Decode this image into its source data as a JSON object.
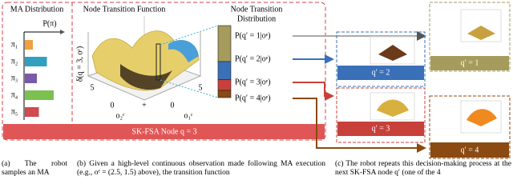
{
  "panel_a": {
    "title": "MA Distribution",
    "axis_label": "P(π)",
    "policies": [
      "π₁",
      "π₂",
      "π₃",
      "π₄",
      "π₅"
    ],
    "probabilities": [
      0.2,
      0.55,
      0.3,
      0.72,
      0.35
    ],
    "colors": [
      "#f0a040",
      "#30a0c0",
      "#7a5aa8",
      "#7cc050",
      "#d04a50"
    ]
  },
  "panel_b": {
    "title": "Node Transition Function",
    "z_label": "δ(q = 3, oᶜ)",
    "x1_label": "o₁ᶜ",
    "x2_label": "o₂ᶜ",
    "ticks": [
      "0",
      "5",
      "5",
      "0"
    ],
    "distribution_title": [
      "Node Transition",
      "Distribution"
    ],
    "transitions": [
      {
        "label": "P(q′ = 1|oᵉ)",
        "probability": 0.5,
        "color": "#a59b5c"
      },
      {
        "label": "P(q′ = 2|oᵉ)",
        "probability": 0.25,
        "color": "#3a70b8"
      },
      {
        "label": "P(q′ = 3|oᵉ)",
        "probability": 0.15,
        "color": "#c8403a"
      },
      {
        "label": "P(q′ = 4|oᵉ)",
        "probability": 0.1,
        "color": "#8a4a12"
      }
    ]
  },
  "node_label": "SK-FSA Node q = 3",
  "panel_c": {
    "nodes": [
      "q′ = 1",
      "q′ = 2",
      "q′ = 3",
      "q′ = 4"
    ]
  },
  "captions": [
    "(a) The robot samples an MA",
    "(b) Given a high-level continuous observation made following MA execution (e.g., oᵉ = (2.5, 1.5) above), the transition function",
    "(c) The robot repeats this decision-making process at the next SK-FSA node q′ (one of the 4"
  ]
}
